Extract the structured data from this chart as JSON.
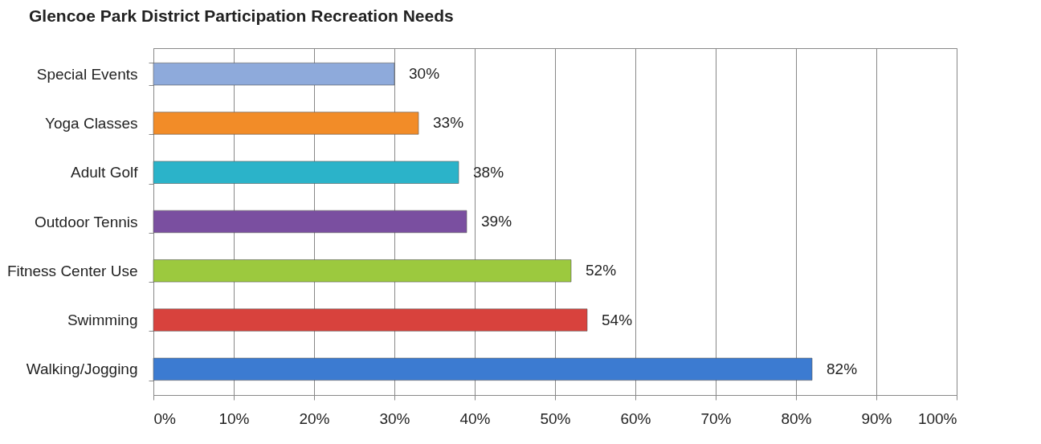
{
  "chart_data": {
    "type": "bar",
    "orientation": "horizontal",
    "title": "Glencoe Park District Participation Recreation Needs",
    "categories": [
      "Special Events",
      "Yoga Classes",
      "Adult Golf",
      "Outdoor Tennis",
      "Fitness Center Use",
      "Swimming",
      "Walking/Jogging"
    ],
    "values": [
      30,
      33,
      38,
      39,
      52,
      54,
      82
    ],
    "colors": [
      "#8eaadb",
      "#f28c28",
      "#2bb3c9",
      "#7a4fa0",
      "#9cc93e",
      "#d8423d",
      "#3c7bd1"
    ],
    "value_labels": [
      "30%",
      "33%",
      "38%",
      "39%",
      "52%",
      "54%",
      "82%"
    ],
    "xlim": [
      0,
      100
    ],
    "xticks": [
      {
        "value": 0,
        "label": "0%"
      },
      {
        "value": 10,
        "label": "10%"
      },
      {
        "value": 20,
        "label": "20%"
      },
      {
        "value": 30,
        "label": "30%"
      },
      {
        "value": 40,
        "label": "40%"
      },
      {
        "value": 50,
        "label": "50%"
      },
      {
        "value": 60,
        "label": "60%"
      },
      {
        "value": 70,
        "label": "70%"
      },
      {
        "value": 80,
        "label": "80%"
      },
      {
        "value": 90,
        "label": "90%"
      },
      {
        "value": 100,
        "label": "100%"
      }
    ],
    "grid": "x"
  }
}
